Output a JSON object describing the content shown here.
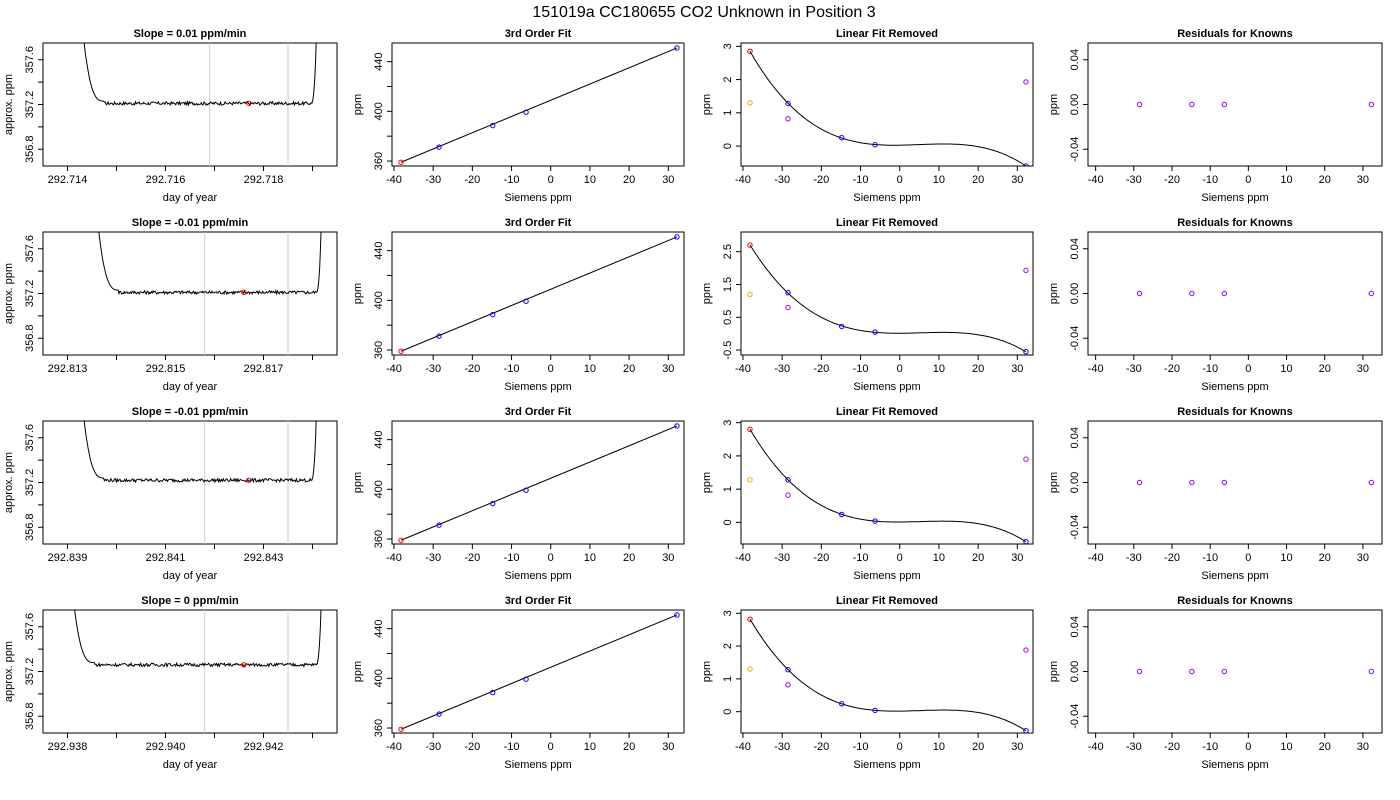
{
  "figure": {
    "title": "151019a     CC180655   CO2 Unknown in Position  3"
  },
  "colors": {
    "frame": "#000000",
    "trace": "#000000",
    "window_line": "#cccccc",
    "mean_point": "#ff0000",
    "known_point": "#0000ff",
    "fit_line": "#000000",
    "unknown_point_high": "#ff0000",
    "unknown_point_low": "#ffaa00",
    "unknown_point_mid": "#aa00ff",
    "residual_point": "#8800ff"
  },
  "rows": [
    {
      "timeseries": {
        "title": "Slope =  0.01  ppm/min",
        "xlabel": "day of year",
        "ylabel": "approx. ppm",
        "xlim": [
          292.7135,
          292.7195
        ],
        "ylim": [
          356.65,
          357.75
        ],
        "xticks": [
          292.714,
          292.715,
          292.716,
          292.717,
          292.718,
          292.719
        ],
        "xticklabels": [
          "292.714",
          "",
          "292.716",
          "",
          "292.718",
          ""
        ],
        "yticks": [
          356.8,
          357.0,
          357.2,
          357.4,
          357.6
        ],
        "yticklabels": [
          "356.8",
          "",
          "357.2",
          "",
          "357.6"
        ],
        "window": [
          292.7169,
          292.7185
        ],
        "rise_start": 292.7145,
        "fall_end": 292.7191,
        "mean_x": 292.7177,
        "mean_y": 357.21,
        "level": 357.21
      }
    },
    {
      "timeseries": {
        "title": "Slope =  -0.01  ppm/min",
        "xlabel": "day of year",
        "ylabel": "approx. ppm",
        "xlim": [
          292.8125,
          292.8185
        ],
        "ylim": [
          356.65,
          357.75
        ],
        "xticks": [
          292.813,
          292.814,
          292.815,
          292.816,
          292.817,
          292.818
        ],
        "xticklabels": [
          "292.813",
          "",
          "292.815",
          "",
          "292.817",
          ""
        ],
        "yticks": [
          356.8,
          357.0,
          357.2,
          357.4,
          357.6
        ],
        "yticklabels": [
          "356.8",
          "",
          "357.2",
          "",
          "357.6"
        ],
        "window": [
          292.8158,
          292.8175
        ],
        "rise_start": 292.8138,
        "fall_end": 292.8182,
        "mean_x": 292.8166,
        "mean_y": 357.21,
        "level": 357.21
      }
    },
    {
      "timeseries": {
        "title": "Slope =  -0.01  ppm/min",
        "xlabel": "day of year",
        "ylabel": "approx. ppm",
        "xlim": [
          292.8385,
          292.8445
        ],
        "ylim": [
          356.65,
          357.75
        ],
        "xticks": [
          292.839,
          292.84,
          292.841,
          292.842,
          292.843,
          292.844
        ],
        "xticklabels": [
          "292.839",
          "",
          "292.841",
          "",
          "292.843",
          ""
        ],
        "yticks": [
          356.8,
          357.0,
          357.2,
          357.4,
          357.6
        ],
        "yticklabels": [
          "356.8",
          "",
          "357.2",
          "",
          "357.6"
        ],
        "window": [
          292.8418,
          292.8435
        ],
        "rise_start": 292.8395,
        "fall_end": 292.8441,
        "mean_x": 292.8427,
        "mean_y": 357.22,
        "level": 357.22
      }
    },
    {
      "timeseries": {
        "title": "Slope =  0  ppm/min",
        "xlabel": "day of year",
        "ylabel": "approx. ppm",
        "xlim": [
          292.9375,
          292.9435
        ],
        "ylim": [
          356.65,
          357.75
        ],
        "xticks": [
          292.938,
          292.939,
          292.94,
          292.941,
          292.942,
          292.943
        ],
        "xticklabels": [
          "292.938",
          "",
          "292.940",
          "",
          "292.942",
          ""
        ],
        "yticks": [
          356.8,
          357.0,
          357.2,
          357.4,
          357.6
        ],
        "yticklabels": [
          "356.8",
          "",
          "357.2",
          "",
          "357.6"
        ],
        "window": [
          292.9408,
          292.9425
        ],
        "rise_start": 292.9383,
        "fall_end": 292.9432,
        "mean_x": 292.9416,
        "mean_y": 357.26,
        "level": 357.26
      }
    }
  ],
  "fit_panel": {
    "title": "3rd Order Fit",
    "xlabel": "Siemens ppm",
    "ylabel": "ppm",
    "xlim": [
      -40.5,
      34
    ],
    "ylim": [
      356,
      455
    ],
    "xticks": [
      -40,
      -30,
      -20,
      -10,
      0,
      10,
      20,
      30
    ],
    "yticks": [
      360,
      380,
      400,
      420,
      440
    ],
    "yticklabels": [
      "360",
      "",
      "400",
      "",
      "440"
    ],
    "known_x": [
      -28.5,
      -14.8,
      -6.3,
      32.2
    ],
    "known_y": [
      371.2,
      388.5,
      399.3,
      451.0
    ],
    "unknown_x": -38.2,
    "unknown_y": 359.0,
    "line_x": [
      -38.2,
      32.2
    ],
    "line_y": [
      359.0,
      451.0
    ]
  },
  "linear_removed": [
    {
      "title": "Linear Fit Removed",
      "xlabel": "Siemens ppm",
      "ylabel": "ppm",
      "xlim": [
        -40.5,
        34
      ],
      "ylim": [
        -0.6,
        3.1
      ],
      "yticks": [
        0,
        1,
        2,
        3
      ],
      "yticklabels": [
        "0",
        "1",
        "2",
        "3"
      ],
      "known_x": [
        -28.5,
        -14.8,
        -6.3,
        32.2
      ],
      "known_y": [
        1.28,
        0.25,
        0.04,
        -0.6
      ],
      "unknown_high": {
        "x": -38.2,
        "y": 2.85
      },
      "unknown_low": {
        "x": -38.2,
        "y": 1.3
      },
      "unknown_mid": [
        {
          "x": -28.5,
          "y": 0.82
        },
        {
          "x": 32.2,
          "y": 1.93
        }
      ]
    },
    {
      "title": "Linear Fit Removed",
      "xlabel": "Siemens ppm",
      "ylabel": "ppm",
      "xlim": [
        -40.5,
        34
      ],
      "ylim": [
        -0.65,
        3.1
      ],
      "yticks": [
        -0.5,
        0.5,
        1.5,
        2.5
      ],
      "yticklabels": [
        "-0.5",
        "0.5",
        "1.5",
        "2.5"
      ],
      "known_x": [
        -28.5,
        -14.8,
        -6.3,
        32.2
      ],
      "known_y": [
        1.25,
        0.22,
        0.05,
        -0.55
      ],
      "unknown_high": {
        "x": -38.2,
        "y": 2.7
      },
      "unknown_low": {
        "x": -38.2,
        "y": 1.2
      },
      "unknown_mid": [
        {
          "x": -28.5,
          "y": 0.8
        },
        {
          "x": 32.2,
          "y": 1.93
        }
      ]
    },
    {
      "title": "Linear Fit Removed",
      "xlabel": "Siemens ppm",
      "ylabel": "ppm",
      "xlim": [
        -40.5,
        34
      ],
      "ylim": [
        -0.65,
        3.05
      ],
      "yticks": [
        0,
        1,
        2,
        3
      ],
      "yticklabels": [
        "0",
        "1",
        "2",
        "3"
      ],
      "known_x": [
        -28.5,
        -14.8,
        -6.3,
        32.2
      ],
      "known_y": [
        1.28,
        0.24,
        0.04,
        -0.58
      ],
      "unknown_high": {
        "x": -38.2,
        "y": 2.8
      },
      "unknown_low": {
        "x": -38.2,
        "y": 1.28
      },
      "unknown_mid": [
        {
          "x": -28.5,
          "y": 0.82
        },
        {
          "x": 32.2,
          "y": 1.9
        }
      ]
    },
    {
      "title": "Linear Fit Removed",
      "xlabel": "Siemens ppm",
      "ylabel": "ppm",
      "xlim": [
        -40.5,
        34
      ],
      "ylim": [
        -0.65,
        3.1
      ],
      "yticks": [
        0,
        1,
        2,
        3
      ],
      "yticklabels": [
        "0",
        "1",
        "2",
        "3"
      ],
      "known_x": [
        -28.5,
        -14.8,
        -6.3,
        32.2
      ],
      "known_y": [
        1.28,
        0.24,
        0.04,
        -0.58
      ],
      "unknown_high": {
        "x": -38.2,
        "y": 2.82
      },
      "unknown_low": {
        "x": -38.2,
        "y": 1.3
      },
      "unknown_mid": [
        {
          "x": -28.5,
          "y": 0.82
        },
        {
          "x": 32.2,
          "y": 1.88
        }
      ]
    }
  ],
  "residuals_panel": {
    "title": "Residuals for Knowns",
    "xlabel": "Siemens ppm",
    "ylabel": "ppm",
    "xlim": [
      -42,
      35
    ],
    "ylim": [
      -0.055,
      0.055
    ],
    "xticks": [
      -40,
      -30,
      -20,
      -10,
      0,
      10,
      20,
      30
    ],
    "yticks": [
      -0.04,
      0.0,
      0.04
    ],
    "yticklabels": [
      "-0.04",
      "0.00",
      "0.04"
    ],
    "known_x": [
      -28.5,
      -14.8,
      -6.3,
      32.2
    ],
    "known_y": [
      0,
      0,
      0,
      0
    ]
  },
  "chart_data": [
    {
      "type": "line",
      "title": "Slope =  0.01  ppm/min",
      "xlabel": "day of year",
      "ylabel": "approx. ppm",
      "xlim": [
        292.7135,
        292.7195
      ],
      "ylim": [
        356.65,
        357.75
      ],
      "window": [
        292.7169,
        292.7185
      ],
      "mean_point": {
        "x": 292.7177,
        "y": 357.21
      }
    },
    {
      "type": "scatter",
      "title": "3rd Order Fit",
      "xlabel": "Siemens ppm",
      "ylabel": "ppm",
      "x": [
        -38.2,
        -28.5,
        -14.8,
        -6.3,
        32.2
      ],
      "y": [
        359.0,
        371.2,
        388.5,
        399.3,
        451.0
      ]
    },
    {
      "type": "scatter",
      "title": "Linear Fit Removed",
      "xlabel": "Siemens ppm",
      "ylabel": "ppm",
      "x": [
        -38.2,
        -28.5,
        -14.8,
        -6.3,
        32.2
      ],
      "y": [
        2.85,
        1.28,
        0.25,
        0.04,
        -0.6
      ]
    },
    {
      "type": "scatter",
      "title": "Residuals for Knowns",
      "xlabel": "Siemens ppm",
      "ylabel": "ppm",
      "x": [
        -28.5,
        -14.8,
        -6.3,
        32.2
      ],
      "y": [
        0,
        0,
        0,
        0
      ]
    }
  ]
}
